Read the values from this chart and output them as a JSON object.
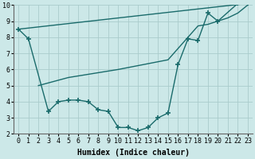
{
  "background_color": "#cce8e8",
  "grid_color": "#aacccc",
  "line_color": "#1a6b6b",
  "line_width": 1.0,
  "marker": "+",
  "markersize": 4,
  "markeredgewidth": 1.2,
  "xlim": [
    -0.5,
    23.5
  ],
  "ylim": [
    2,
    10
  ],
  "xlabel": "Humidex (Indice chaleur)",
  "xticks": [
    0,
    1,
    2,
    3,
    4,
    5,
    6,
    7,
    8,
    9,
    10,
    11,
    12,
    13,
    14,
    15,
    16,
    17,
    18,
    19,
    20,
    21,
    22,
    23
  ],
  "yticks": [
    2,
    3,
    4,
    5,
    6,
    7,
    8,
    9,
    10
  ],
  "series1_x": [
    0,
    1,
    3,
    4,
    5,
    6,
    7,
    8,
    9,
    10,
    11,
    12,
    13,
    14,
    15,
    16,
    17,
    18,
    19,
    20,
    22,
    23
  ],
  "series1_y": [
    8.5,
    7.9,
    3.4,
    4.0,
    4.1,
    4.1,
    4.0,
    3.5,
    3.4,
    2.4,
    2.4,
    2.2,
    2.4,
    3.0,
    3.3,
    6.3,
    7.9,
    7.8,
    9.5,
    9.0,
    10.1,
    10.1
  ],
  "series2_x": [
    0,
    23
  ],
  "series2_y": [
    8.5,
    10.1
  ],
  "series3_x": [
    2,
    5,
    6,
    10,
    15,
    18,
    19,
    21,
    22,
    23
  ],
  "series3_y": [
    5.0,
    5.5,
    5.6,
    6.0,
    6.6,
    8.7,
    8.8,
    9.2,
    9.5,
    10.0
  ],
  "xlabel_fontsize": 7,
  "tick_fontsize": 6
}
